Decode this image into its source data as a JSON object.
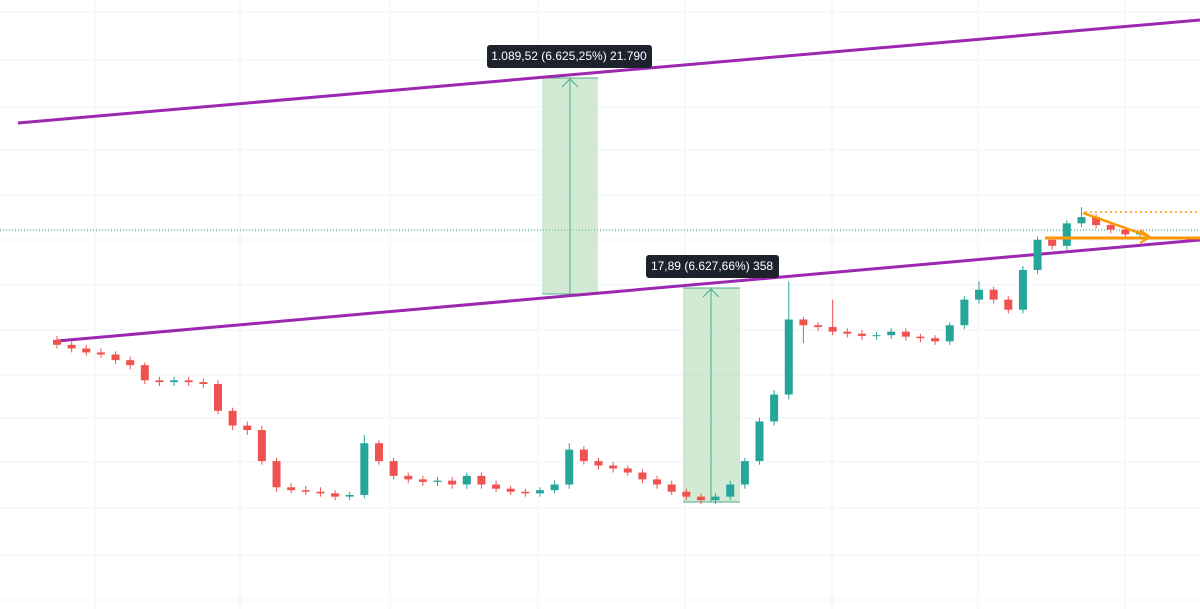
{
  "chart_data": {
    "type": "candlestick",
    "scale": "log",
    "ylim": [
      0.0335,
      4840
    ],
    "colors": {
      "up": "#26a69a",
      "down": "#ef5350"
    },
    "annotations": [
      "1.089,52 (6.625,25%) 21.790",
      "17,89 (6.627,66%) 358"
    ],
    "open": [
      6.4,
      5.8,
      5.4,
      5.0,
      4.8,
      4.3,
      3.9,
      2.9,
      2.8,
      2.9,
      2.8,
      2.7,
      1.6,
      1.2,
      1.1,
      0.6,
      0.36,
      0.34,
      0.33,
      0.32,
      0.3,
      0.31,
      0.85,
      0.6,
      0.45,
      0.42,
      0.4,
      0.41,
      0.38,
      0.45,
      0.38,
      0.35,
      0.33,
      0.32,
      0.34,
      0.38,
      0.75,
      0.6,
      0.55,
      0.52,
      0.48,
      0.42,
      0.38,
      0.33,
      0.3,
      0.28,
      0.3,
      0.38,
      0.6,
      1.3,
      2.2,
      9.5,
      8.5,
      8.2,
      7.5,
      7.2,
      6.9,
      7.0,
      7.5,
      6.8,
      6.6,
      6.2,
      8.5,
      14,
      17,
      14,
      11.5,
      25,
      45,
      40,
      62,
      70,
      60,
      55,
      50
    ],
    "high": [
      6.9,
      6.2,
      5.8,
      5.4,
      5.1,
      4.6,
      4.1,
      3.1,
      3.1,
      3.1,
      3.0,
      2.9,
      1.7,
      1.3,
      1.2,
      0.64,
      0.39,
      0.37,
      0.36,
      0.34,
      0.33,
      1.0,
      0.9,
      0.64,
      0.48,
      0.45,
      0.44,
      0.44,
      0.48,
      0.48,
      0.41,
      0.37,
      0.35,
      0.36,
      0.41,
      0.85,
      0.8,
      0.64,
      0.59,
      0.55,
      0.51,
      0.45,
      0.41,
      0.35,
      0.32,
      0.32,
      0.41,
      0.64,
      1.4,
      2.4,
      20,
      10,
      9,
      14,
      8,
      7.7,
      7.5,
      8,
      8,
      7.2,
      7,
      9,
      15,
      20,
      18,
      15,
      27,
      48,
      48,
      66,
      85,
      74,
      64,
      58,
      55
    ],
    "low": [
      5.4,
      5.0,
      4.7,
      4.5,
      4.0,
      3.6,
      2.7,
      2.6,
      2.6,
      2.6,
      2.5,
      1.5,
      1.1,
      1.0,
      0.56,
      0.33,
      0.32,
      0.31,
      0.3,
      0.28,
      0.28,
      0.29,
      0.56,
      0.42,
      0.39,
      0.37,
      0.37,
      0.35,
      0.35,
      0.35,
      0.33,
      0.31,
      0.3,
      0.3,
      0.32,
      0.35,
      0.56,
      0.51,
      0.48,
      0.45,
      0.39,
      0.35,
      0.31,
      0.28,
      0.26,
      0.26,
      0.28,
      0.35,
      0.56,
      1.2,
      2.0,
      6,
      7.6,
      7.0,
      6.7,
      6.4,
      6.4,
      6.5,
      6.3,
      6.1,
      5.8,
      5.8,
      7.9,
      13,
      13,
      10.7,
      10.7,
      23,
      37,
      37,
      58,
      56,
      51,
      46,
      46
    ],
    "close": [
      5.8,
      5.4,
      5.0,
      4.8,
      4.3,
      3.9,
      2.9,
      2.8,
      2.9,
      2.8,
      2.7,
      1.6,
      1.2,
      1.1,
      0.6,
      0.36,
      0.34,
      0.33,
      0.32,
      0.3,
      0.31,
      0.85,
      0.6,
      0.45,
      0.42,
      0.4,
      0.41,
      0.38,
      0.45,
      0.38,
      0.35,
      0.33,
      0.32,
      0.34,
      0.38,
      0.75,
      0.6,
      0.55,
      0.52,
      0.48,
      0.42,
      0.38,
      0.33,
      0.3,
      0.28,
      0.3,
      0.38,
      0.6,
      1.3,
      2.2,
      9.5,
      8.5,
      8.2,
      7.5,
      7.2,
      6.9,
      7.0,
      7.5,
      6.8,
      6.6,
      6.2,
      8.5,
      14,
      17,
      14,
      11.5,
      25,
      45,
      40,
      62,
      70,
      60,
      55,
      50,
      52
    ]
  }
}
